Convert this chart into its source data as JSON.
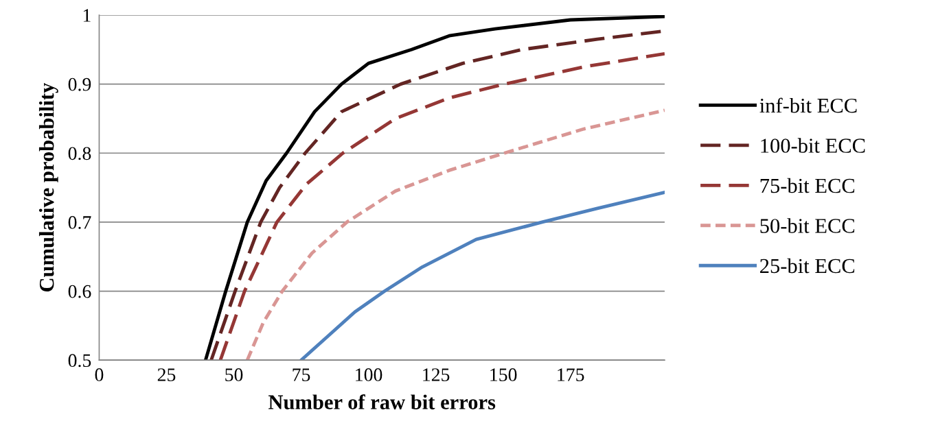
{
  "chart_data": {
    "type": "line",
    "xlabel": "Number of raw bit errors",
    "ylabel": "Cumulative probability",
    "xlim": [
      0,
      210
    ],
    "xticks": [
      0,
      25,
      50,
      75,
      100,
      125,
      150,
      175
    ],
    "ylim": [
      0.5,
      1
    ],
    "yticks": [
      0.5,
      0.6,
      0.7,
      0.8,
      0.9,
      1
    ],
    "grid": "y",
    "legend": "right",
    "marker": "none",
    "series": [
      {
        "name": "inf-bit ECC",
        "color": "#000000",
        "line_style": "solid",
        "x": [
          39.5,
          47,
          55,
          62,
          69.6,
          80,
          90,
          100,
          116,
          130,
          147,
          175,
          210
        ],
        "values": [
          0.5,
          0.6,
          0.7,
          0.76,
          0.8,
          0.86,
          0.9,
          0.93,
          0.95,
          0.97,
          0.98,
          0.993,
          0.998
        ]
      },
      {
        "name": "100-bit ECC",
        "color": "#632523",
        "line_style": "dashed",
        "x": [
          41.6,
          50.5,
          60,
          67,
          76.5,
          90,
          112,
          135,
          157,
          185,
          210
        ],
        "values": [
          0.5,
          0.6,
          0.7,
          0.75,
          0.8,
          0.86,
          0.9,
          0.93,
          0.95,
          0.965,
          0.977
        ]
      },
      {
        "name": "75-bit ECC",
        "color": "#953735",
        "line_style": "dashed",
        "x": [
          45,
          54,
          66,
          77,
          90.5,
          110,
          130,
          150.5,
          180,
          210
        ],
        "values": [
          0.5,
          0.6,
          0.7,
          0.755,
          0.8,
          0.85,
          0.88,
          0.9,
          0.925,
          0.944
        ]
      },
      {
        "name": "50-bit ECC",
        "color": "#d99694",
        "line_style": "dotted",
        "x": [
          55,
          61,
          68,
          79,
          92,
          110,
          130,
          150.5,
          180,
          210
        ],
        "values": [
          0.5,
          0.555,
          0.6,
          0.655,
          0.7,
          0.745,
          0.775,
          0.8,
          0.835,
          0.862
        ]
      },
      {
        "name": "25-bit ECC",
        "color": "#4f81bd",
        "line_style": "solid",
        "x": [
          75,
          85,
          95,
          106,
          120,
          140,
          164.5,
          185,
          210
        ],
        "values": [
          0.5,
          0.535,
          0.57,
          0.6,
          0.635,
          0.675,
          0.7,
          0.72,
          0.743
        ]
      }
    ]
  }
}
